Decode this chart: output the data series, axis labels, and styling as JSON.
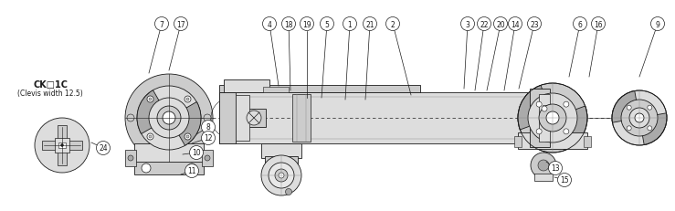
{
  "background_color": "#ffffff",
  "text_color": "#1a1a1a",
  "ck_label": "CK□1C",
  "ck_sublabel": "(Clevis width 12.5)",
  "fig_width": 7.39,
  "fig_height": 2.32,
  "dpi": 100,
  "lc": "#1a1a1a",
  "gray1": "#888888",
  "gray2": "#aaaaaa",
  "gray3": "#cccccc",
  "gray4": "#dddddd",
  "gray5": "#e8e8e8",
  "callouts": [
    [
      7,
      177,
      27,
      163,
      81
    ],
    [
      17,
      198,
      27,
      185,
      78
    ],
    [
      4,
      295,
      27,
      305,
      95
    ],
    [
      18,
      316,
      27,
      318,
      100
    ],
    [
      19,
      336,
      27,
      336,
      108
    ],
    [
      5,
      358,
      27,
      352,
      108
    ],
    [
      1,
      383,
      27,
      378,
      110
    ],
    [
      21,
      405,
      27,
      400,
      110
    ],
    [
      2,
      430,
      27,
      450,
      105
    ],
    [
      3,
      512,
      27,
      508,
      98
    ],
    [
      22,
      530,
      27,
      520,
      100
    ],
    [
      20,
      548,
      27,
      533,
      100
    ],
    [
      14,
      564,
      27,
      552,
      100
    ],
    [
      23,
      585,
      27,
      568,
      98
    ],
    [
      6,
      635,
      27,
      623,
      85
    ],
    [
      16,
      655,
      27,
      645,
      85
    ],
    [
      9,
      720,
      27,
      700,
      85
    ],
    [
      8,
      228,
      140,
      215,
      148
    ],
    [
      12,
      228,
      152,
      210,
      158
    ],
    [
      10,
      215,
      168,
      200,
      170
    ],
    [
      11,
      210,
      188,
      198,
      192
    ],
    [
      13,
      608,
      185,
      598,
      178
    ],
    [
      15,
      618,
      198,
      607,
      195
    ],
    [
      24,
      113,
      163,
      100,
      157
    ]
  ]
}
